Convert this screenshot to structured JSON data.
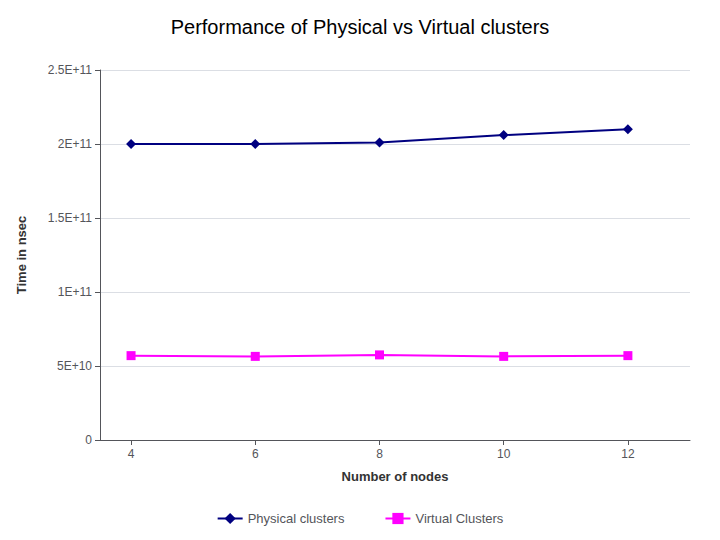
{
  "chart_data": {
    "type": "line",
    "title": "Performance of Physical vs Virtual clusters",
    "xlabel": "Number of nodes",
    "ylabel": "Time in nsec",
    "x": [
      4,
      6,
      8,
      10,
      12
    ],
    "series": [
      {
        "name": "Physical clusters",
        "color": "#000080",
        "marker": "diamond",
        "values": [
          200000000000.0,
          200000000000.0,
          201000000000.0,
          206000000000.0,
          210000000000.0
        ]
      },
      {
        "name": "Virtual Clusters",
        "color": "#FF00FF",
        "marker": "square",
        "values": [
          57000000000.0,
          56500000000.0,
          57500000000.0,
          56500000000.0,
          57000000000.0
        ]
      }
    ],
    "xlim": [
      3.5,
      13
    ],
    "xticks": [
      4,
      6,
      8,
      10,
      12
    ],
    "ylim": [
      0,
      250000000000.0
    ],
    "yticks": [
      0,
      {
        "value": 50000000000.0,
        "label": "5E+10"
      },
      {
        "value": 100000000000.0,
        "label": "1E+11"
      },
      {
        "value": 150000000000.0,
        "label": "1.5E+11"
      },
      {
        "value": 200000000000.0,
        "label": "2E+11"
      },
      {
        "value": 250000000000.0,
        "label": "2.5E+11"
      }
    ],
    "grid": true,
    "legend": "bottom"
  }
}
